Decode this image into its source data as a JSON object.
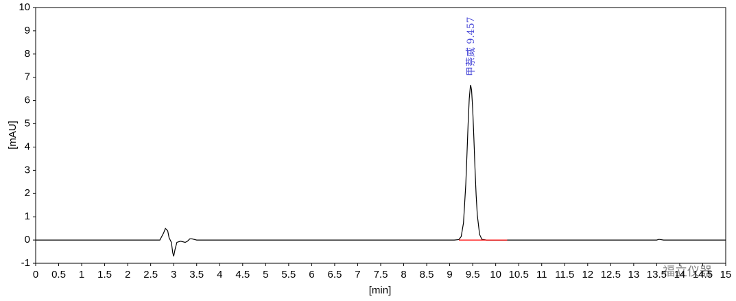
{
  "chart_data": {
    "type": "line",
    "x_label": "[min]",
    "y_label": "[mAU]",
    "annotations": [
      {
        "text": "甲萘威  9.457",
        "x": 9.457
      }
    ],
    "watermark": "福立仪器",
    "xlim": [
      0,
      15
    ],
    "ylim": [
      -1,
      10
    ],
    "xticks": [
      0,
      0.5,
      1,
      1.5,
      2,
      2.5,
      3,
      3.5,
      4,
      4.5,
      5,
      5.5,
      6,
      6.5,
      7,
      7.5,
      8,
      8.5,
      9,
      9.5,
      10,
      10.5,
      11,
      11.5,
      12,
      12.5,
      13,
      13.5,
      14,
      14.5,
      15
    ],
    "yticks": [
      -1,
      0,
      1,
      2,
      3,
      4,
      5,
      6,
      7,
      8,
      9,
      10
    ],
    "series": [
      {
        "color": "#000000",
        "x": [
          0,
          2.7,
          2.78,
          2.82,
          2.87,
          2.9,
          2.95,
          2.98,
          3.0,
          3.03,
          3.07,
          3.15,
          3.25,
          3.3,
          3.35,
          3.4,
          3.5,
          9.1,
          9.2,
          9.25,
          9.3,
          9.35,
          9.375,
          9.4,
          9.425,
          9.45,
          9.457,
          9.475,
          9.5,
          9.525,
          9.55,
          9.575,
          9.6,
          9.65,
          9.7,
          9.8,
          13.5,
          13.55,
          13.65,
          15
        ],
        "values": [
          0,
          0,
          0.3,
          0.5,
          0.4,
          0.1,
          -0.1,
          -0.55,
          -0.7,
          -0.4,
          -0.1,
          -0.05,
          -0.1,
          -0.05,
          0.05,
          0.05,
          0,
          0,
          0.02,
          0.15,
          0.74,
          2.4,
          3.66,
          4.98,
          6.07,
          6.64,
          6.65,
          6.46,
          5.64,
          4.41,
          3.08,
          1.93,
          1.08,
          0.24,
          0.03,
          0,
          0,
          0.03,
          0,
          0
        ]
      },
      {
        "color": "#ff0000",
        "x": [
          9.2,
          10.25
        ],
        "values": [
          0,
          0
        ]
      }
    ]
  }
}
